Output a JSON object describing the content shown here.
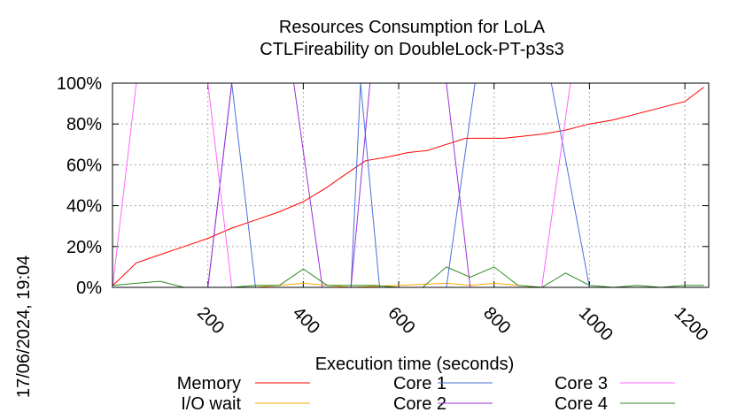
{
  "chart_data": {
    "type": "line",
    "title": [
      "Resources Consumption for LoLA",
      "CTLFireability on DoubleLock-PT-p3s3"
    ],
    "xlabel": "Execution time (seconds)",
    "ylabel": "",
    "timestamp": "17/06/2024, 19:04",
    "xlim": [
      0,
      1250
    ],
    "ylim": [
      0,
      100
    ],
    "x_ticks": [
      200,
      400,
      600,
      800,
      1000,
      1200
    ],
    "x_tick_labels": [
      "200",
      "400",
      "600",
      "800",
      "1000",
      "1200"
    ],
    "y_ticks": [
      0,
      20,
      40,
      60,
      80,
      100
    ],
    "y_tick_labels": [
      "0%",
      "20%",
      "40%",
      "60%",
      "80%",
      "100%"
    ],
    "grid": true,
    "legend_position": "bottom",
    "series": [
      {
        "name": "Memory",
        "color": "#ff0000",
        "points": [
          [
            0,
            1
          ],
          [
            10,
            3
          ],
          [
            50,
            12
          ],
          [
            100,
            16
          ],
          [
            150,
            20
          ],
          [
            200,
            24
          ],
          [
            250,
            29
          ],
          [
            300,
            33
          ],
          [
            350,
            37
          ],
          [
            400,
            42
          ],
          [
            450,
            49
          ],
          [
            480,
            54
          ],
          [
            530,
            62
          ],
          [
            580,
            64
          ],
          [
            620,
            66
          ],
          [
            660,
            67
          ],
          [
            700,
            70
          ],
          [
            740,
            73
          ],
          [
            780,
            73
          ],
          [
            820,
            73
          ],
          [
            860,
            74
          ],
          [
            900,
            75
          ],
          [
            950,
            77
          ],
          [
            1000,
            80
          ],
          [
            1050,
            82
          ],
          [
            1100,
            85
          ],
          [
            1150,
            88
          ],
          [
            1200,
            91
          ],
          [
            1240,
            98
          ]
        ]
      },
      {
        "name": "I/O wait",
        "color": "#ffa500",
        "points": [
          [
            0,
            0
          ],
          [
            100,
            0
          ],
          [
            300,
            0
          ],
          [
            400,
            2
          ],
          [
            450,
            1
          ],
          [
            500,
            0
          ],
          [
            700,
            2
          ],
          [
            750,
            1
          ],
          [
            800,
            2
          ],
          [
            850,
            1
          ],
          [
            900,
            0
          ],
          [
            1000,
            0
          ],
          [
            1100,
            0
          ],
          [
            1240,
            0
          ]
        ]
      },
      {
        "name": "Core 1",
        "color": "#4a6fd6",
        "points": [
          [
            0,
            0
          ],
          [
            200,
            0
          ],
          [
            250,
            100
          ],
          [
            300,
            0
          ],
          [
            500,
            0
          ],
          [
            520,
            100
          ],
          [
            560,
            0
          ],
          [
            700,
            0
          ],
          [
            760,
            100
          ],
          [
            800,
            100
          ],
          [
            920,
            100
          ],
          [
            1000,
            0
          ],
          [
            1240,
            0
          ]
        ]
      },
      {
        "name": "Core 2",
        "color": "#9b30d9",
        "points": [
          [
            0,
            0
          ],
          [
            200,
            0
          ],
          [
            250,
            100
          ],
          [
            380,
            100
          ],
          [
            440,
            0
          ],
          [
            500,
            0
          ],
          [
            540,
            100
          ],
          [
            700,
            100
          ],
          [
            750,
            0
          ],
          [
            1240,
            0
          ]
        ]
      },
      {
        "name": "Core 3",
        "color": "#ff66ff",
        "points": [
          [
            0,
            0
          ],
          [
            50,
            100
          ],
          [
            200,
            100
          ],
          [
            250,
            0
          ],
          [
            900,
            0
          ],
          [
            960,
            100
          ],
          [
            1240,
            100
          ]
        ]
      },
      {
        "name": "Core 4",
        "color": "#2e8b22",
        "points": [
          [
            0,
            1
          ],
          [
            50,
            2
          ],
          [
            100,
            3
          ],
          [
            150,
            0
          ],
          [
            250,
            0
          ],
          [
            300,
            1
          ],
          [
            350,
            1
          ],
          [
            400,
            9
          ],
          [
            450,
            1
          ],
          [
            500,
            1
          ],
          [
            550,
            1
          ],
          [
            600,
            0
          ],
          [
            650,
            0
          ],
          [
            700,
            10
          ],
          [
            750,
            5
          ],
          [
            800,
            10
          ],
          [
            850,
            1
          ],
          [
            900,
            0
          ],
          [
            950,
            7
          ],
          [
            1000,
            1
          ],
          [
            1050,
            0
          ],
          [
            1100,
            1
          ],
          [
            1150,
            0
          ],
          [
            1200,
            1
          ],
          [
            1240,
            1
          ]
        ]
      }
    ]
  }
}
